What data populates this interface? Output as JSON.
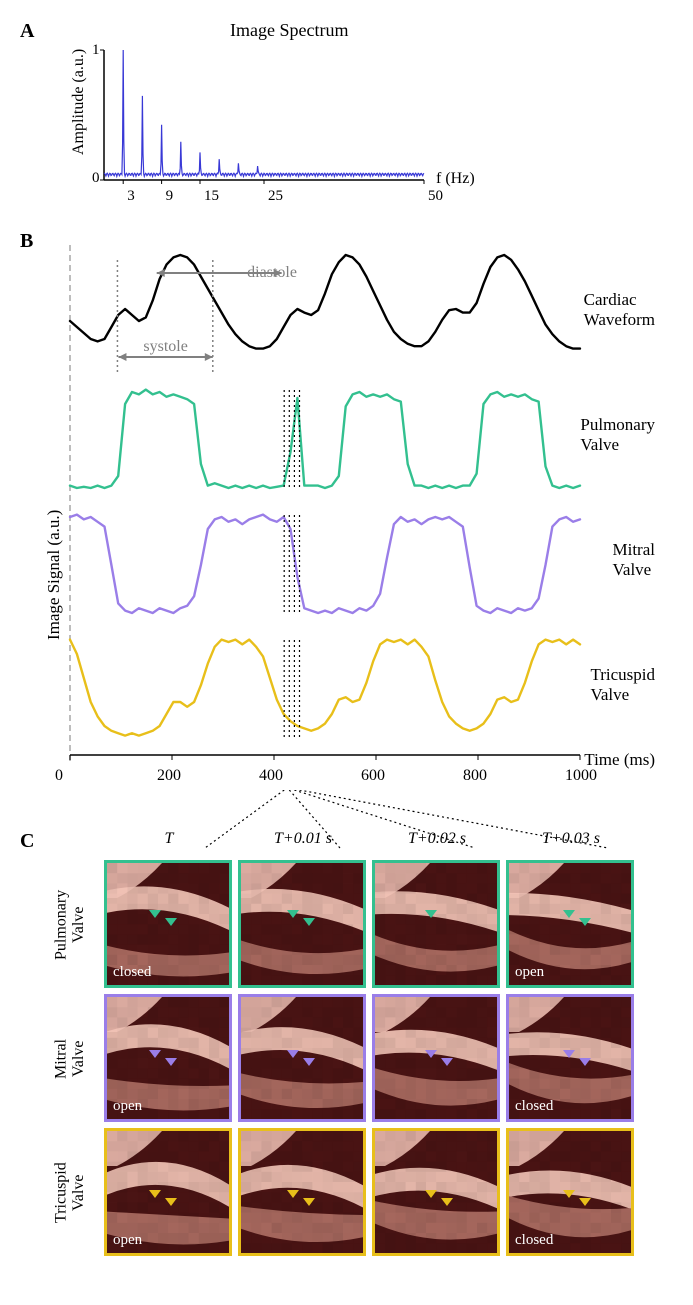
{
  "panelA": {
    "label": "A",
    "title": "Image Spectrum",
    "ylabel": "Amplitude  (a.u.)",
    "xlabel": "f (Hz)",
    "type": "line",
    "color": "#3838d6",
    "line_width": 1.2,
    "background_color": "#ffffff",
    "xlim": [
      0,
      50
    ],
    "ylim": [
      0,
      1
    ],
    "xticks": [
      3,
      9,
      15,
      25,
      50
    ],
    "yticks": [
      0,
      1
    ],
    "peaks_hz": [
      3,
      6,
      9,
      12,
      15,
      18,
      21,
      24
    ],
    "peaks_amp": [
      1.0,
      0.6,
      0.38,
      0.25,
      0.17,
      0.12,
      0.09,
      0.07
    ],
    "baseline_noise_amp": 0.04,
    "title_fontsize": 18,
    "label_fontsize": 16,
    "tick_fontsize": 15
  },
  "panelB": {
    "label": "B",
    "ylabel": "Image Signal (a.u.)",
    "xlabel": "Time (ms)",
    "type": "line",
    "background_color": "#ffffff",
    "xlim": [
      0,
      1000
    ],
    "xticks": [
      0,
      200,
      400,
      600,
      800,
      1000
    ],
    "line_width": 2.4,
    "label_fontsize": 17,
    "tick_fontsize": 16,
    "phase_labels": {
      "systole": {
        "text": "systole",
        "range_ms": [
          95,
          280
        ],
        "color": "#808080"
      },
      "diastole": {
        "text": "diastole",
        "range_ms": [
          170,
          415
        ],
        "color": "#808080"
      }
    },
    "systole_dotted_ms": [
      93,
      280
    ],
    "window_ms": [
      420,
      430,
      440,
      450
    ],
    "traces": [
      {
        "name": "Cardiac Waveform",
        "color": "#000000",
        "y": [
          0.45,
          0.4,
          0.35,
          0.3,
          0.28,
          0.3,
          0.4,
          0.5,
          0.55,
          0.5,
          0.45,
          0.48,
          0.62,
          0.8,
          0.92,
          0.98,
          1.0,
          0.98,
          0.92,
          0.82,
          0.72,
          0.62,
          0.52,
          0.42,
          0.34,
          0.28,
          0.24,
          0.22,
          0.22,
          0.24,
          0.3,
          0.4,
          0.5,
          0.55,
          0.52,
          0.5,
          0.54,
          0.68,
          0.84,
          0.94,
          1.0,
          0.98,
          0.92,
          0.82,
          0.7,
          0.58,
          0.46,
          0.36,
          0.3,
          0.26,
          0.24,
          0.24,
          0.28,
          0.36,
          0.46,
          0.54,
          0.55,
          0.52,
          0.52,
          0.6,
          0.76,
          0.9,
          0.98,
          1.0,
          0.96,
          0.88,
          0.78,
          0.66,
          0.54,
          0.42,
          0.34,
          0.28,
          0.24,
          0.22,
          0.22
        ]
      },
      {
        "name": "Pulmonary Valve",
        "color": "#33c08f",
        "y": [
          0.12,
          0.1,
          0.11,
          0.1,
          0.12,
          0.1,
          0.12,
          0.2,
          0.8,
          0.9,
          0.88,
          0.92,
          0.88,
          0.9,
          0.86,
          0.88,
          0.86,
          0.84,
          0.8,
          0.3,
          0.12,
          0.14,
          0.12,
          0.1,
          0.12,
          0.1,
          0.12,
          0.1,
          0.12,
          0.1,
          0.11,
          0.12,
          0.4,
          0.85,
          0.12,
          0.12,
          0.12,
          0.1,
          0.12,
          0.2,
          0.78,
          0.88,
          0.9,
          0.86,
          0.88,
          0.86,
          0.88,
          0.84,
          0.82,
          0.3,
          0.12,
          0.12,
          0.1,
          0.12,
          0.1,
          0.12,
          0.1,
          0.12,
          0.12,
          0.22,
          0.8,
          0.88,
          0.9,
          0.86,
          0.88,
          0.86,
          0.88,
          0.84,
          0.82,
          0.28,
          0.12,
          0.1,
          0.12,
          0.1,
          0.12
        ]
      },
      {
        "name": "Mitral Valve",
        "color": "#9a7ee8",
        "y": [
          0.9,
          0.92,
          0.88,
          0.9,
          0.86,
          0.82,
          0.5,
          0.18,
          0.12,
          0.1,
          0.14,
          0.12,
          0.1,
          0.14,
          0.12,
          0.1,
          0.14,
          0.16,
          0.24,
          0.5,
          0.8,
          0.88,
          0.9,
          0.86,
          0.88,
          0.84,
          0.88,
          0.9,
          0.92,
          0.88,
          0.86,
          0.9,
          0.8,
          0.4,
          0.14,
          0.12,
          0.1,
          0.12,
          0.1,
          0.14,
          0.12,
          0.1,
          0.14,
          0.12,
          0.16,
          0.26,
          0.56,
          0.84,
          0.9,
          0.86,
          0.88,
          0.84,
          0.88,
          0.9,
          0.88,
          0.9,
          0.86,
          0.82,
          0.48,
          0.16,
          0.12,
          0.1,
          0.14,
          0.12,
          0.1,
          0.14,
          0.12,
          0.14,
          0.22,
          0.5,
          0.82,
          0.88,
          0.9,
          0.86,
          0.88
        ]
      },
      {
        "name": "Tricuspid Valve",
        "color": "#e8bf1a",
        "y": [
          0.92,
          0.8,
          0.6,
          0.4,
          0.28,
          0.2,
          0.16,
          0.14,
          0.12,
          0.14,
          0.12,
          0.14,
          0.16,
          0.2,
          0.3,
          0.4,
          0.4,
          0.36,
          0.4,
          0.54,
          0.72,
          0.86,
          0.92,
          0.9,
          0.92,
          0.88,
          0.92,
          0.86,
          0.78,
          0.6,
          0.42,
          0.3,
          0.24,
          0.2,
          0.18,
          0.16,
          0.18,
          0.22,
          0.3,
          0.42,
          0.44,
          0.4,
          0.42,
          0.56,
          0.74,
          0.88,
          0.92,
          0.9,
          0.92,
          0.88,
          0.92,
          0.86,
          0.78,
          0.58,
          0.4,
          0.28,
          0.22,
          0.18,
          0.16,
          0.18,
          0.22,
          0.3,
          0.42,
          0.44,
          0.4,
          0.42,
          0.56,
          0.74,
          0.88,
          0.92,
          0.9,
          0.92,
          0.88,
          0.92,
          0.88
        ]
      }
    ]
  },
  "panelC": {
    "label": "C",
    "type": "image-grid",
    "column_headers": [
      "T",
      "T+0.01 s",
      "T+0.02 s",
      "T+0.03 s"
    ],
    "header_fontsize": 16,
    "header_fontstyle": "italic",
    "tile_bg_dark": "#4a1414",
    "tile_tissue_light": "#f4c6b8",
    "tile_tissue_mid": "#b5756a",
    "rows": [
      {
        "name": "Pulmonary Valve",
        "border_color": "#33c08f",
        "arrow_color": "#33c08f",
        "states": [
          "closed",
          "",
          "",
          "open"
        ]
      },
      {
        "name": "Mitral Valve",
        "border_color": "#9a7ee8",
        "arrow_color": "#9a7ee8",
        "states": [
          "open",
          "",
          "",
          "closed"
        ]
      },
      {
        "name": "Tricuspid Valve",
        "border_color": "#e8bf1a",
        "arrow_color": "#e8bf1a",
        "states": [
          "open",
          "",
          "",
          "closed"
        ]
      }
    ],
    "state_text_color": "#ffffff",
    "state_fontsize": 15
  },
  "leader_line_color": "#000000",
  "dashed_color": "#bdbdbd"
}
